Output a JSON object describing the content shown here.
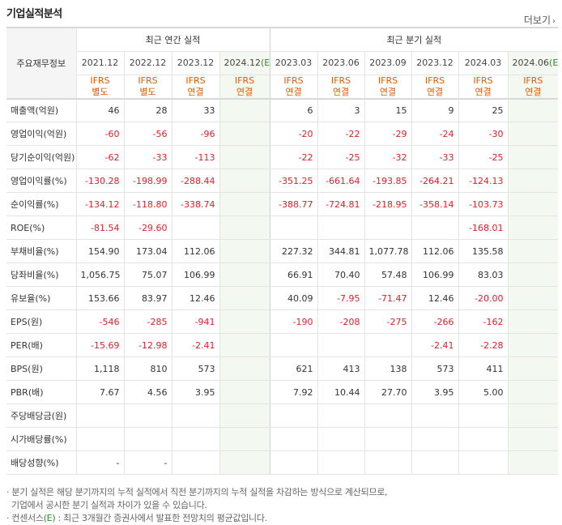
{
  "header": {
    "title": "기업실적분석",
    "more_label": "더보기"
  },
  "table": {
    "row_header_label": "주요재무정보",
    "groups": {
      "annual": "최근 연간 실적",
      "quarter": "최근 분기 실적"
    },
    "periods": [
      "2021.12",
      "2022.12",
      "2023.12",
      "2024.12",
      "2023.03",
      "2023.06",
      "2023.09",
      "2023.12",
      "2024.03",
      "2024.06"
    ],
    "estimate_suffix": "(E)",
    "types": [
      [
        "IFRS",
        "별도"
      ],
      [
        "IFRS",
        "별도"
      ],
      [
        "IFRS",
        "연결"
      ],
      [
        "IFRS",
        "연결"
      ],
      [
        "IFRS",
        "연결"
      ],
      [
        "IFRS",
        "연결"
      ],
      [
        "IFRS",
        "연결"
      ],
      [
        "IFRS",
        "연결"
      ],
      [
        "IFRS",
        "연결"
      ],
      [
        "IFRS",
        "연결"
      ]
    ],
    "rows": [
      {
        "label": "매출액(억원)",
        "values": [
          "46",
          "28",
          "33",
          "",
          "6",
          "3",
          "15",
          "9",
          "25",
          ""
        ]
      },
      {
        "label": "영업이익(억원)",
        "values": [
          "-60",
          "-56",
          "-96",
          "",
          "-20",
          "-22",
          "-29",
          "-24",
          "-30",
          ""
        ]
      },
      {
        "label": "당기순이익(억원)",
        "values": [
          "-62",
          "-33",
          "-113",
          "",
          "-22",
          "-25",
          "-32",
          "-33",
          "-25",
          ""
        ]
      },
      {
        "label": "영업이익률(%)",
        "values": [
          "-130.28",
          "-198.99",
          "-288.44",
          "",
          "-351.25",
          "-661.64",
          "-193.85",
          "-264.21",
          "-124.13",
          ""
        ]
      },
      {
        "label": "순이익률(%)",
        "values": [
          "-134.12",
          "-118.80",
          "-338.74",
          "",
          "-388.77",
          "-724.81",
          "-218.95",
          "-358.14",
          "-103.73",
          ""
        ]
      },
      {
        "label": "ROE(%)",
        "values": [
          "-81.54",
          "-29.60",
          "",
          "",
          "",
          "",
          "",
          "",
          "-168.01",
          ""
        ]
      },
      {
        "label": "부채비율(%)",
        "values": [
          "154.90",
          "173.04",
          "112.06",
          "",
          "227.32",
          "344.81",
          "1,077.78",
          "112.06",
          "135.58",
          ""
        ]
      },
      {
        "label": "당좌비율(%)",
        "values": [
          "1,056.75",
          "75.07",
          "106.99",
          "",
          "66.91",
          "70.40",
          "57.48",
          "106.99",
          "83.03",
          ""
        ]
      },
      {
        "label": "유보율(%)",
        "values": [
          "153.66",
          "83.97",
          "12.46",
          "",
          "40.09",
          "-7.95",
          "-71.47",
          "12.46",
          "-20.00",
          ""
        ]
      },
      {
        "label": "EPS(원)",
        "values": [
          "-546",
          "-285",
          "-941",
          "",
          "-190",
          "-208",
          "-275",
          "-266",
          "-162",
          ""
        ]
      },
      {
        "label": "PER(배)",
        "values": [
          "-15.69",
          "-12.98",
          "-2.41",
          "",
          "",
          "",
          "",
          "-2.41",
          "-2.28",
          ""
        ]
      },
      {
        "label": "BPS(원)",
        "values": [
          "1,118",
          "810",
          "573",
          "",
          "621",
          "413",
          "138",
          "573",
          "411",
          ""
        ]
      },
      {
        "label": "PBR(배)",
        "values": [
          "7.67",
          "4.56",
          "3.95",
          "",
          "7.92",
          "10.44",
          "27.70",
          "3.95",
          "5.00",
          ""
        ]
      },
      {
        "label": "주당배당금(원)",
        "values": [
          "",
          "",
          "",
          "",
          "",
          "",
          "",
          "",
          "",
          ""
        ]
      },
      {
        "label": "시가배당률(%)",
        "values": [
          "",
          "",
          "",
          "",
          "",
          "",
          "",
          "",
          "",
          ""
        ]
      },
      {
        "label": "배당성향(%)",
        "values": [
          "-",
          "-",
          "",
          "",
          "",
          "",
          "",
          "",
          "",
          ""
        ]
      }
    ]
  },
  "notes": {
    "line1": "분기 실적은 해당 분기까지의 누적 실적에서 직전 분기까지의 누적 실적을 차감하는 방식으로 계산되므로,",
    "line2": "기업에서 공시한 분기 실적과 차이가 있을 수 있습니다.",
    "line3_prefix": "컨센서스",
    "line3_mark": "(E)",
    "line3_suffix": " : 최근 3개월간 증권사에서 발표한 전망치의 평균값입니다."
  },
  "colors": {
    "ifrs": "#e35b00",
    "negative": "#e0202a",
    "estimate": "#2b8a2b",
    "estimate_bg": "#f3f9f1"
  }
}
